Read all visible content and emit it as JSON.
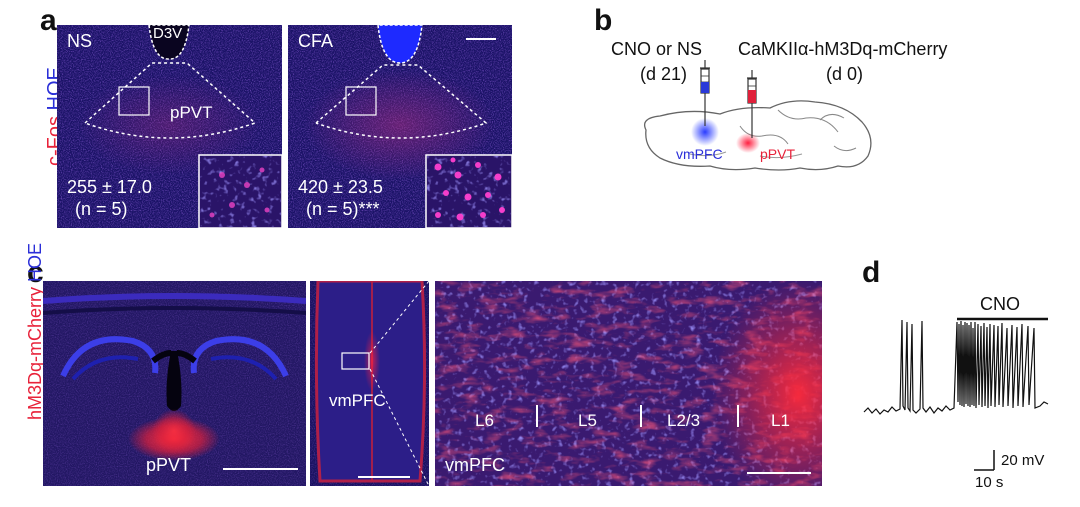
{
  "panel_a": {
    "letter": "a",
    "ylabel_red": "c-Fos",
    "ylabel_blue": "HOE",
    "left": {
      "condition": "NS",
      "d3v": "D3V",
      "region": "pPVT",
      "count": "255 ± 17.0",
      "n_text": "(n = 5)"
    },
    "right": {
      "condition": "CFA",
      "count": "420 ± 23.5",
      "n_text": "(n = 5)***"
    }
  },
  "panel_b": {
    "letter": "b",
    "inj1_line1": "CNO or NS",
    "inj1_line2": "(d 21)",
    "inj2_line1": "CaMKIIα-hM3Dq-mCherry",
    "inj2_line2": "(d 0)",
    "site1": "vmPFC",
    "site2": "pPVT"
  },
  "panel_c": {
    "letter": "c",
    "ylabel_blue": "HOE",
    "ylabel_red": "hM3Dq-mCherry",
    "img1_label": "pPVT",
    "img2_label": "vmPFC",
    "img3_label": "vmPFC",
    "layers": [
      "L6",
      "L5",
      "L2/3",
      "L1"
    ]
  },
  "panel_d": {
    "letter": "d",
    "drug": "CNO",
    "scale_v": "20 mV",
    "scale_t": "10 s"
  },
  "colors": {
    "red_label": "#e8223a",
    "blue_label": "#2b2fd8",
    "tissue_blue": "#1c1570",
    "mcherry": "#ff2a3a"
  }
}
